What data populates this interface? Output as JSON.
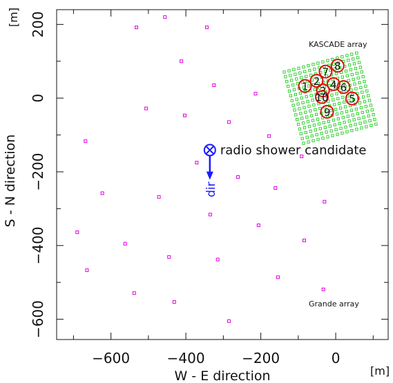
{
  "chart_data": {
    "type": "scatter",
    "xlabel": "W - E direction",
    "ylabel": "S - N direction",
    "x_unit": "[m]",
    "y_unit": "[m]",
    "xlim": [
      -745,
      140
    ],
    "ylim": [
      -655,
      240
    ],
    "x_ticks": [
      -600,
      -400,
      -200,
      0
    ],
    "y_ticks": [
      200,
      0,
      -200,
      -400,
      -600
    ],
    "x_tick_labels": [
      "−600",
      "−400",
      "−200",
      "0"
    ],
    "y_tick_labels": [
      "200",
      "0",
      "−200",
      "−400",
      "−600"
    ],
    "grid": false,
    "colors": {
      "grande": "#e000e0",
      "kascade": "#22cc22",
      "circles": "#e01010",
      "candidate": "#1a1aff"
    },
    "grande_stations": [
      [
        -532,
        192
      ],
      [
        -456,
        220
      ],
      [
        -344,
        192
      ],
      [
        -412,
        100
      ],
      [
        -325,
        35
      ],
      [
        -214,
        12
      ],
      [
        -506,
        -28
      ],
      [
        -403,
        -47
      ],
      [
        -285,
        -65
      ],
      [
        -178,
        -103
      ],
      [
        -668,
        -117
      ],
      [
        -371,
        -175
      ],
      [
        -91,
        -158
      ],
      [
        -623,
        -258
      ],
      [
        -472,
        -268
      ],
      [
        -261,
        -214
      ],
      [
        -161,
        -244
      ],
      [
        -30,
        -281
      ],
      [
        -335,
        -316
      ],
      [
        -206,
        -345
      ],
      [
        -690,
        -364
      ],
      [
        -562,
        -395
      ],
      [
        -84,
        -386
      ],
      [
        -445,
        -431
      ],
      [
        -315,
        -438
      ],
      [
        -664,
        -467
      ],
      [
        -154,
        -486
      ],
      [
        -538,
        -529
      ],
      [
        -431,
        -553
      ],
      [
        -33,
        -519
      ],
      [
        -285,
        -605
      ]
    ],
    "kascade_array": {
      "center": [
        -15,
        0
      ],
      "half_size": 100,
      "grid_n": 16,
      "rotation_deg": 15,
      "label": "KASCADE array"
    },
    "grande_label": "Grande array",
    "lopes_antennas": [
      {
        "id": "1",
        "x": -82,
        "y": 33
      },
      {
        "id": "2",
        "x": -51,
        "y": 47
      },
      {
        "id": "3",
        "x": -34,
        "y": 21
      },
      {
        "id": "4",
        "x": -6,
        "y": 38
      },
      {
        "id": "5",
        "x": 44,
        "y": -1
      },
      {
        "id": "6",
        "x": 21,
        "y": 30
      },
      {
        "id": "7",
        "x": -27,
        "y": 72
      },
      {
        "id": "8",
        "x": 5,
        "y": 88
      },
      {
        "id": "9",
        "x": -23,
        "y": -37
      },
      {
        "id": "10",
        "x": -37,
        "y": 3
      }
    ],
    "shower_candidate": {
      "x": -336,
      "y": -141,
      "label": "radio shower candidate",
      "direction_label": "dir",
      "arrow_to": [
        -336,
        -218
      ]
    }
  }
}
